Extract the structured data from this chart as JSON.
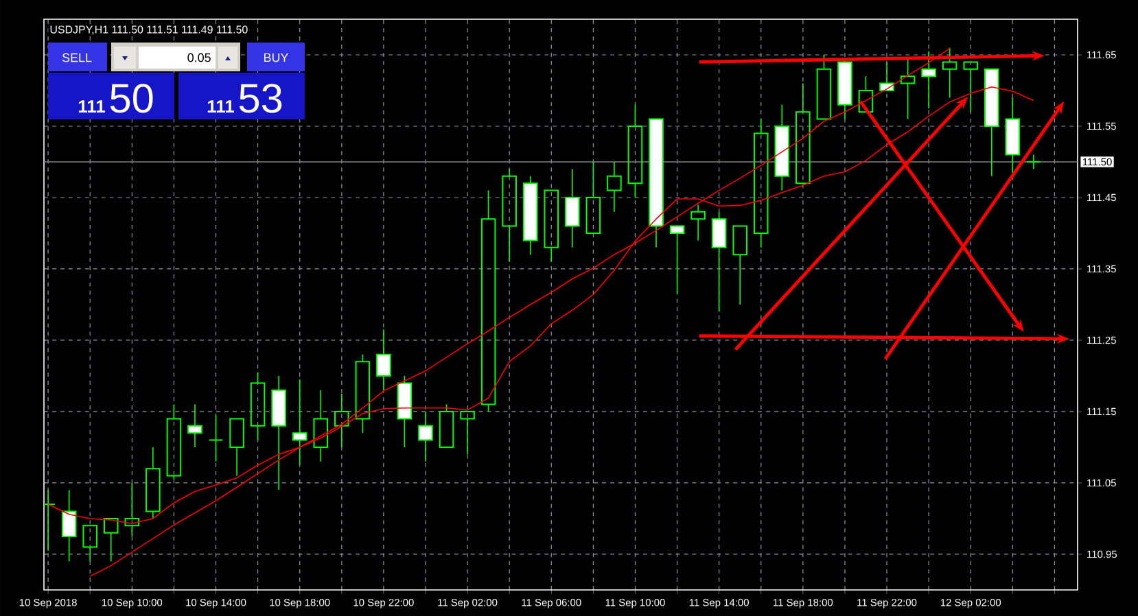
{
  "chart_data": {
    "type": "candlestick",
    "title": "USDJPY,H1  111.50 111.51 111.49 111.50",
    "annotations": [
      "SELL",
      "0.05",
      "BUY",
      "111",
      "50",
      "111",
      "53"
    ],
    "color": "#00ff00",
    "grid": true,
    "xlim": [
      "2018-09-10T05:48",
      "2018-09-12T07:06"
    ],
    "ylim": [
      110.9,
      111.7
    ],
    "yticks": [
      110.95,
      111.05,
      111.15,
      111.25,
      111.35,
      111.45,
      111.55,
      111.65
    ],
    "xticks": [
      {
        "value": "2018-09-10T06:00",
        "label": "10 Sep 2018"
      },
      {
        "value": "2018-09-10T08:00",
        "label": null
      },
      {
        "value": "2018-09-10T10:00",
        "label": "10 Sep 10:00"
      },
      {
        "value": "2018-09-10T12:00",
        "label": null
      },
      {
        "value": "2018-09-10T14:00",
        "label": "10 Sep 14:00"
      },
      {
        "value": "2018-09-10T16:00",
        "label": null
      },
      {
        "value": "2018-09-10T18:00",
        "label": "10 Sep 18:00"
      },
      {
        "value": "2018-09-10T20:00",
        "label": null
      },
      {
        "value": "2018-09-10T22:00",
        "label": "10 Sep 22:00"
      },
      {
        "value": "2018-09-11T00:00",
        "label": null
      },
      {
        "value": "2018-09-11T02:00",
        "label": "11 Sep 02:00"
      },
      {
        "value": "2018-09-11T04:00",
        "label": null
      },
      {
        "value": "2018-09-11T06:00",
        "label": "11 Sep 06:00"
      },
      {
        "value": "2018-09-11T08:00",
        "label": null
      },
      {
        "value": "2018-09-11T10:00",
        "label": "11 Sep 10:00"
      },
      {
        "value": "2018-09-11T12:00",
        "label": null
      },
      {
        "value": "2018-09-11T14:00",
        "label": "11 Sep 14:00"
      },
      {
        "value": "2018-09-11T16:00",
        "label": null
      },
      {
        "value": "2018-09-11T18:00",
        "label": "11 Sep 18:00"
      },
      {
        "value": "2018-09-11T20:00",
        "label": null
      },
      {
        "value": "2018-09-11T22:00",
        "label": "11 Sep 22:00"
      },
      {
        "value": "2018-09-12T00:00",
        "label": null
      },
      {
        "value": "2018-09-12T02:00",
        "label": "12 Sep 02:00"
      },
      {
        "value": "2018-09-12T04:00",
        "label": null
      },
      {
        "value": "2018-09-12T06:00",
        "label": null
      }
    ],
    "ref_lines": [
      {
        "axis": "y",
        "value": 111.5,
        "label": "111.50",
        "color": "#808080"
      }
    ],
    "x": [
      "2018-09-10T06:00",
      "2018-09-10T07:00",
      "2018-09-10T08:00",
      "2018-09-10T09:00",
      "2018-09-10T10:00",
      "2018-09-10T11:00",
      "2018-09-10T12:00",
      "2018-09-10T13:00",
      "2018-09-10T14:00",
      "2018-09-10T15:00",
      "2018-09-10T16:00",
      "2018-09-10T17:00",
      "2018-09-10T18:00",
      "2018-09-10T19:00",
      "2018-09-10T20:00",
      "2018-09-10T21:00",
      "2018-09-10T22:00",
      "2018-09-10T23:00",
      "2018-09-11T00:00",
      "2018-09-11T01:00",
      "2018-09-11T02:00",
      "2018-09-11T03:00",
      "2018-09-11T04:00",
      "2018-09-11T05:00",
      "2018-09-11T06:00",
      "2018-09-11T07:00",
      "2018-09-11T08:00",
      "2018-09-11T09:00",
      "2018-09-11T10:00",
      "2018-09-11T11:00",
      "2018-09-11T12:00",
      "2018-09-11T13:00",
      "2018-09-11T14:00",
      "2018-09-11T15:00",
      "2018-09-11T16:00",
      "2018-09-11T17:00",
      "2018-09-11T18:00",
      "2018-09-11T19:00",
      "2018-09-11T20:00",
      "2018-09-11T21:00",
      "2018-09-11T22:00",
      "2018-09-11T23:00",
      "2018-09-12T00:00",
      "2018-09-12T01:00",
      "2018-09-12T02:00",
      "2018-09-12T03:00",
      "2018-09-12T04:00",
      "2018-09-12T05:00"
    ],
    "ohlc": [
      [
        111.02,
        111.04,
        110.955,
        111.02
      ],
      [
        111.01,
        111.04,
        110.94,
        110.975
      ],
      [
        110.96,
        110.99,
        110.94,
        110.99
      ],
      [
        110.98,
        111.0,
        110.94,
        111.0
      ],
      [
        110.99,
        111.05,
        110.975,
        111.0
      ],
      [
        111.01,
        111.1,
        111.0,
        111.07
      ],
      [
        111.06,
        111.16,
        111.055,
        111.14
      ],
      [
        111.13,
        111.16,
        111.1,
        111.12
      ],
      [
        111.11,
        111.145,
        111.08,
        111.11
      ],
      [
        111.1,
        111.14,
        111.06,
        111.14
      ],
      [
        111.13,
        111.205,
        111.11,
        111.19
      ],
      [
        111.18,
        111.2,
        111.04,
        111.13
      ],
      [
        111.12,
        111.195,
        111.075,
        111.11
      ],
      [
        111.1,
        111.18,
        111.08,
        111.14
      ],
      [
        111.13,
        111.175,
        111.1,
        111.15
      ],
      [
        111.14,
        111.23,
        111.12,
        111.22
      ],
      [
        111.23,
        111.265,
        111.18,
        111.2
      ],
      [
        111.19,
        111.2,
        111.1,
        111.14
      ],
      [
        111.13,
        111.15,
        111.08,
        111.11
      ],
      [
        111.1,
        111.16,
        111.1,
        111.15
      ],
      [
        111.14,
        111.15,
        111.09,
        111.15
      ],
      [
        111.16,
        111.46,
        111.15,
        111.42
      ],
      [
        111.41,
        111.49,
        111.36,
        111.48
      ],
      [
        111.47,
        111.48,
        111.37,
        111.39
      ],
      [
        111.38,
        111.46,
        111.36,
        111.46
      ],
      [
        111.45,
        111.49,
        111.38,
        111.41
      ],
      [
        111.4,
        111.5,
        111.4,
        111.45
      ],
      [
        111.46,
        111.5,
        111.43,
        111.48
      ],
      [
        111.47,
        111.58,
        111.45,
        111.55
      ],
      [
        111.56,
        111.56,
        111.38,
        111.41
      ],
      [
        111.41,
        111.41,
        111.315,
        111.4
      ],
      [
        111.42,
        111.44,
        111.39,
        111.43
      ],
      [
        111.42,
        111.43,
        111.29,
        111.38
      ],
      [
        111.37,
        111.41,
        111.3,
        111.41
      ],
      [
        111.4,
        111.56,
        111.38,
        111.54
      ],
      [
        111.55,
        111.58,
        111.46,
        111.48
      ],
      [
        111.47,
        111.61,
        111.47,
        111.57
      ],
      [
        111.56,
        111.65,
        111.56,
        111.63
      ],
      [
        111.64,
        111.64,
        111.56,
        111.58
      ],
      [
        111.57,
        111.62,
        111.57,
        111.6
      ],
      [
        111.61,
        111.64,
        111.6,
        111.6
      ],
      [
        111.61,
        111.645,
        111.56,
        111.62
      ],
      [
        111.63,
        111.655,
        111.575,
        111.62
      ],
      [
        111.63,
        111.66,
        111.59,
        111.64
      ],
      [
        111.63,
        111.64,
        111.57,
        111.64
      ],
      [
        111.63,
        111.63,
        111.48,
        111.55
      ],
      [
        111.56,
        111.59,
        111.48,
        111.51
      ],
      [
        111.5,
        111.51,
        111.49,
        111.5
      ]
    ],
    "series": [
      {
        "type": "line",
        "color": "#ff0000",
        "x": [
          "2018-09-10T06:00",
          "2018-09-10T07:00",
          "2018-09-10T08:00",
          "2018-09-10T09:00",
          "2018-09-10T10:00",
          "2018-09-10T11:00",
          "2018-09-10T12:00",
          "2018-09-10T13:00",
          "2018-09-10T14:00",
          "2018-09-10T15:00",
          "2018-09-10T16:00",
          "2018-09-10T17:00",
          "2018-09-10T18:00",
          "2018-09-10T19:00",
          "2018-09-10T20:00",
          "2018-09-10T21:00",
          "2018-09-10T22:00",
          "2018-09-10T23:00",
          "2018-09-11T00:00",
          "2018-09-11T01:00",
          "2018-09-11T02:00",
          "2018-09-11T03:00",
          "2018-09-11T04:00",
          "2018-09-11T05:00",
          "2018-09-11T06:00",
          "2018-09-11T07:00",
          "2018-09-11T08:00",
          "2018-09-11T09:00",
          "2018-09-11T10:00",
          "2018-09-11T11:00",
          "2018-09-11T12:00",
          "2018-09-11T13:00",
          "2018-09-11T14:00",
          "2018-09-11T15:00",
          "2018-09-11T16:00",
          "2018-09-11T17:00",
          "2018-09-11T18:00",
          "2018-09-11T19:00",
          "2018-09-11T20:00",
          "2018-09-11T21:00",
          "2018-09-11T22:00",
          "2018-09-11T23:00",
          "2018-09-12T00:00",
          "2018-09-12T01:00",
          "2018-09-12T02:00",
          "2018-09-12T03:00",
          "2018-09-12T04:00",
          "2018-09-12T05:00"
        ],
        "values": [
          111.02,
          111.006,
          111.0,
          110.998,
          110.993,
          111.0,
          111.022,
          111.038,
          111.047,
          111.057,
          111.075,
          111.09,
          111.1,
          111.113,
          111.129,
          111.147,
          111.154,
          111.155,
          111.155,
          111.155,
          111.152,
          111.169,
          111.22,
          111.242,
          111.273,
          111.292,
          111.314,
          111.348,
          111.389,
          111.42,
          111.448,
          111.448,
          111.438,
          111.439,
          111.446,
          111.457,
          111.467,
          111.48,
          111.486,
          111.502,
          111.524,
          111.542,
          111.564,
          111.584,
          111.596,
          111.605,
          111.599,
          111.586
        ]
      },
      {
        "type": "line",
        "color": "#ff0000",
        "x": [
          "2018-09-10T08:00",
          "2018-09-10T09:00",
          "2018-09-10T10:00",
          "2018-09-10T11:00",
          "2018-09-10T12:00",
          "2018-09-10T13:00",
          "2018-09-10T14:00",
          "2018-09-10T15:00",
          "2018-09-10T16:00",
          "2018-09-10T17:00",
          "2018-09-10T18:00",
          "2018-09-10T19:00",
          "2018-09-10T20:00",
          "2018-09-10T21:00",
          "2018-09-10T22:00",
          "2018-09-10T23:00",
          "2018-09-11T00:00",
          "2018-09-11T01:00",
          "2018-09-11T02:00",
          "2018-09-11T03:00",
          "2018-09-11T04:00",
          "2018-09-11T05:00",
          "2018-09-11T06:00",
          "2018-09-11T07:00",
          "2018-09-11T08:00",
          "2018-09-11T09:00",
          "2018-09-11T10:00",
          "2018-09-11T11:00",
          "2018-09-11T12:00",
          "2018-09-11T13:00",
          "2018-09-11T14:00",
          "2018-09-11T15:00",
          "2018-09-11T16:00",
          "2018-09-11T17:00",
          "2018-09-11T18:00",
          "2018-09-11T19:00",
          "2018-09-11T20:00",
          "2018-09-11T21:00",
          "2018-09-11T22:00",
          "2018-09-11T23:00",
          "2018-09-12T00:00",
          "2018-09-12T01:00"
        ],
        "values": [
          110.919,
          110.934,
          110.953,
          110.972,
          110.991,
          111.008,
          111.025,
          111.044,
          111.063,
          111.082,
          111.1,
          111.116,
          111.132,
          111.155,
          111.179,
          111.193,
          111.207,
          111.226,
          111.245,
          111.263,
          111.282,
          111.3,
          111.317,
          111.336,
          111.351,
          111.37,
          111.386,
          111.404,
          111.423,
          111.442,
          111.46,
          111.477,
          111.495,
          111.514,
          111.533,
          111.557,
          111.57,
          111.586,
          111.602,
          111.621,
          111.639,
          111.659
        ]
      }
    ]
  }
}
